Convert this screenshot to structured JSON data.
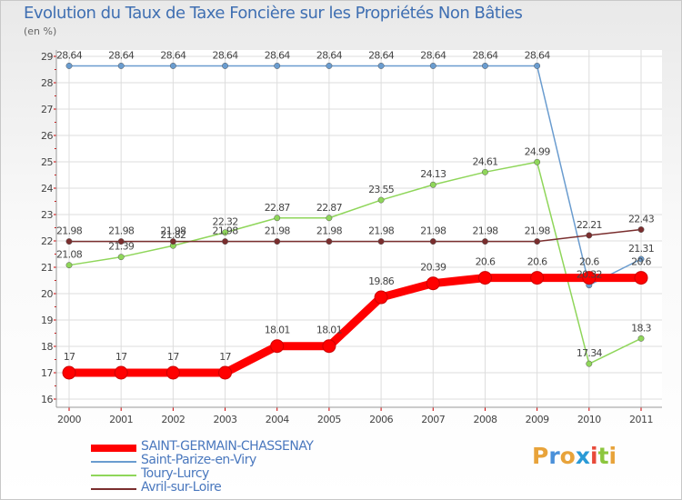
{
  "title": "Evolution du Taux de Taxe Foncière sur les Propriétés Non Bâties",
  "subtitle": "(en %)",
  "logo": {
    "text": [
      "P",
      "r",
      "o",
      "x",
      "i",
      "t",
      "i"
    ],
    "colors": [
      "#e8a33a",
      "#4a90d9",
      "#e8a33a",
      "#2a9ad6",
      "#e84a3a",
      "#8cc63e",
      "#e8a33a"
    ]
  },
  "chart_data": {
    "type": "line",
    "title": "Evolution du Taux de Taxe Foncière sur les Propriétés Non Bâties",
    "ylabel": "(en %)",
    "xlabel": "",
    "x": [
      "2000",
      "2001",
      "2002",
      "2003",
      "2004",
      "2005",
      "2006",
      "2007",
      "2008",
      "2009",
      "2010",
      "2011"
    ],
    "ylim": [
      16,
      29
    ],
    "yticks": [
      "16",
      "17",
      "18",
      "19",
      "20",
      "21",
      "22",
      "23",
      "24",
      "25",
      "26",
      "27",
      "28",
      "29"
    ],
    "grid": true,
    "series": [
      {
        "name": "SAINT-GERMAIN-CHASSENAY",
        "color": "#ff0000",
        "values": [
          17,
          17,
          17,
          17,
          18.01,
          18.01,
          19.86,
          20.39,
          20.6,
          20.6,
          20.6,
          20.6
        ],
        "labels": [
          "17",
          "17",
          "17",
          "17",
          "18.01",
          "18.01",
          "19.86",
          "20.39",
          "20.6",
          "20.6",
          "20.6",
          "20.6"
        ]
      },
      {
        "name": "Saint-Parize-en-Viry",
        "color": "#6a9ccf",
        "values": [
          28.64,
          28.64,
          28.64,
          28.64,
          28.64,
          28.64,
          28.64,
          28.64,
          28.64,
          28.64,
          20.32,
          21.31
        ],
        "labels": [
          "28.64",
          "28.64",
          "28.64",
          "28.64",
          "28.64",
          "28.64",
          "28.64",
          "28.64",
          "28.64",
          "28.64",
          "20.32",
          "21.31"
        ]
      },
      {
        "name": "Toury-Lurcy",
        "color": "#8fd65a",
        "values": [
          21.08,
          21.39,
          21.82,
          22.32,
          22.87,
          22.87,
          23.55,
          24.13,
          24.61,
          24.99,
          17.34,
          18.3
        ],
        "labels": [
          "21.08",
          "21.39",
          "21.82",
          "22.32",
          "22.87",
          "22.87",
          "23.55",
          "24.13",
          "24.61",
          "24.99",
          "17.34",
          "18.3"
        ]
      },
      {
        "name": "Avril-sur-Loire",
        "color": "#7a2e2e",
        "values": [
          21.98,
          21.98,
          21.98,
          21.98,
          21.98,
          21.98,
          21.98,
          21.98,
          21.98,
          21.98,
          22.21,
          22.43
        ],
        "labels": [
          "21.98",
          "21.98",
          "21.98",
          "21.98",
          "21.98",
          "21.98",
          "21.98",
          "21.98",
          "21.98",
          "21.98",
          "22.21",
          "22.43"
        ]
      }
    ]
  }
}
